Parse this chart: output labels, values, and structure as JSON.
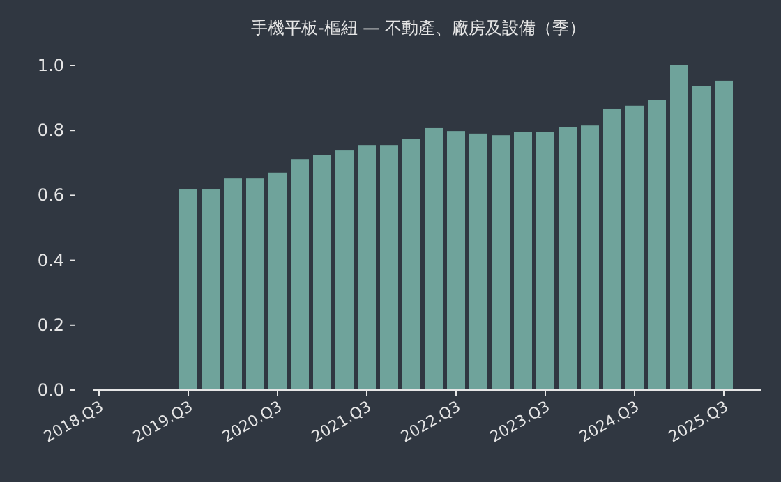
{
  "chart_data": {
    "type": "bar",
    "title": "手機平板-樞紐 — 不動產、廠房及設備（季）",
    "categories": [
      "2018.Q3",
      null,
      null,
      null,
      "2019.Q3",
      null,
      null,
      null,
      "2020.Q3",
      null,
      null,
      null,
      "2021.Q3",
      null,
      null,
      null,
      "2022.Q3",
      null,
      null,
      null,
      "2023.Q3",
      null,
      null,
      null,
      "2024.Q3",
      null,
      null,
      null,
      "2025.Q3"
    ],
    "values": [
      null,
      null,
      null,
      null,
      0.618,
      0.618,
      0.652,
      0.652,
      0.67,
      0.712,
      0.725,
      0.738,
      0.755,
      0.755,
      0.773,
      0.807,
      0.798,
      0.79,
      0.785,
      0.794,
      0.794,
      0.811,
      0.815,
      0.867,
      0.876,
      0.893,
      1.0,
      0.936,
      0.953
    ],
    "color": "#6fa39b",
    "ylim": [
      0,
      1.0
    ],
    "yticks": [
      {
        "value": 0,
        "label": "0.0"
      },
      {
        "value": 0.2,
        "label": "0.2"
      },
      {
        "value": 0.4,
        "label": "0.4"
      },
      {
        "value": 0.6,
        "label": "0.6"
      },
      {
        "value": 0.8,
        "label": "0.8"
      },
      {
        "value": 1.0,
        "label": "1.0"
      }
    ],
    "grid": false
  }
}
